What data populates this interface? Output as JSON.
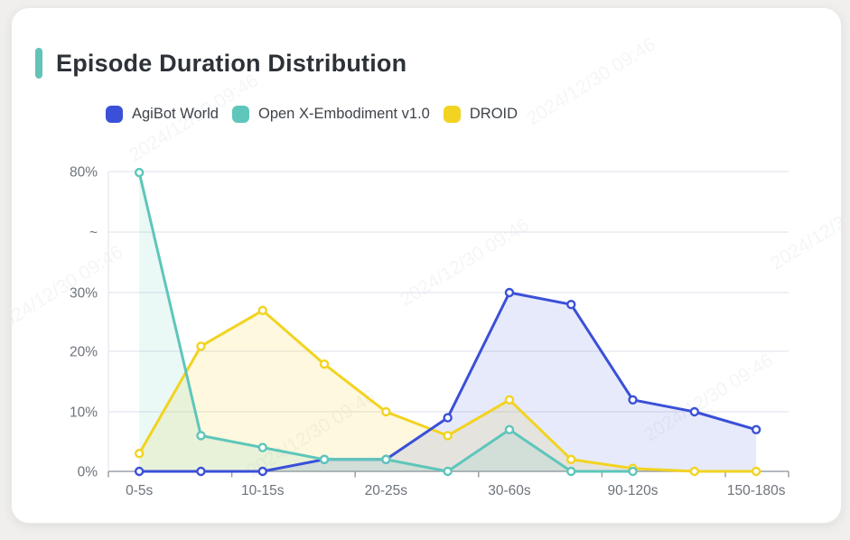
{
  "card": {
    "title": "Episode Duration Distribution",
    "accent_color": "#63c3b8"
  },
  "watermark": {
    "text": "2024/12/30 09:46"
  },
  "chart_data": {
    "type": "line",
    "title": "Episode Duration Distribution",
    "legend_position": "top",
    "area_fill": true,
    "x_axis": {
      "categories": [
        "0-5s",
        "",
        "10-15s",
        "",
        "20-25s",
        "",
        "30-60s",
        "",
        "90-120s",
        "",
        "150-180s"
      ],
      "visible_labels": [
        "0-5s",
        "10-15s",
        "20-25s",
        "30-60s",
        "90-120s",
        "150-180s"
      ],
      "labeled_indices": [
        0,
        2,
        4,
        6,
        8,
        10
      ]
    },
    "y_axis": {
      "unit": "%",
      "tick_labels": [
        "0%",
        "10%",
        "20%",
        "30%",
        "~",
        "80%"
      ],
      "linear_range": [
        0,
        30
      ],
      "break_symbol": "~",
      "break_to": 80,
      "grid": true
    },
    "series": [
      {
        "name": "AgiBot World",
        "color": "#3a50d8",
        "values": [
          0,
          0,
          0,
          2,
          2,
          9,
          30,
          28,
          12,
          10,
          7
        ]
      },
      {
        "name": "Open X-Embodiment v1.0",
        "color": "#5ec6ba",
        "values": [
          79.6,
          6,
          4,
          2,
          2,
          0,
          7,
          0,
          0,
          null,
          null
        ]
      },
      {
        "name": "DROID",
        "color": "#f2d321",
        "values": [
          3,
          21,
          27,
          18,
          10,
          6,
          12,
          2,
          0.5,
          0,
          0
        ]
      }
    ]
  }
}
